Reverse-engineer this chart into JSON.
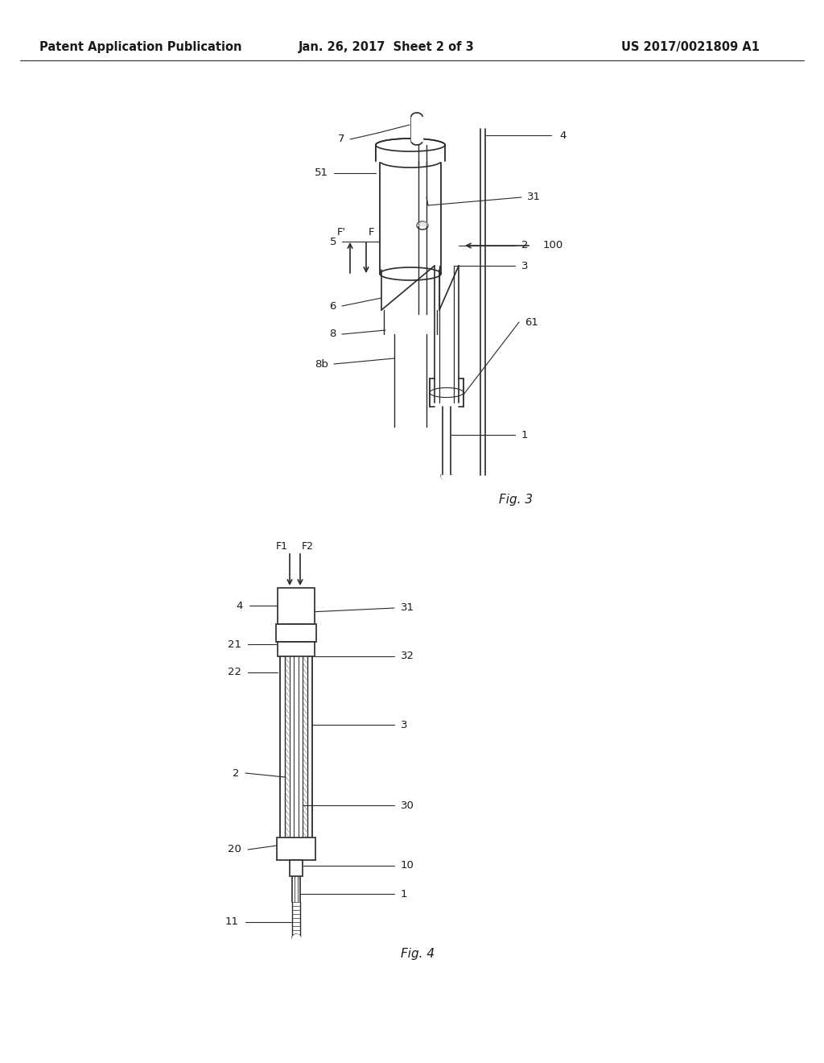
{
  "background_color": "#ffffff",
  "header_left": "Patent Application Publication",
  "header_center": "Jan. 26, 2017  Sheet 2 of 3",
  "header_right": "US 2017/0021809 A1",
  "fig3_label": "Fig. 3",
  "fig4_label": "Fig. 4",
  "line_color": "#2a2a2a",
  "text_color": "#1a1a1a",
  "header_fontsize": 10.5,
  "label_fontsize": 9.5,
  "fig_label_fontsize": 11
}
